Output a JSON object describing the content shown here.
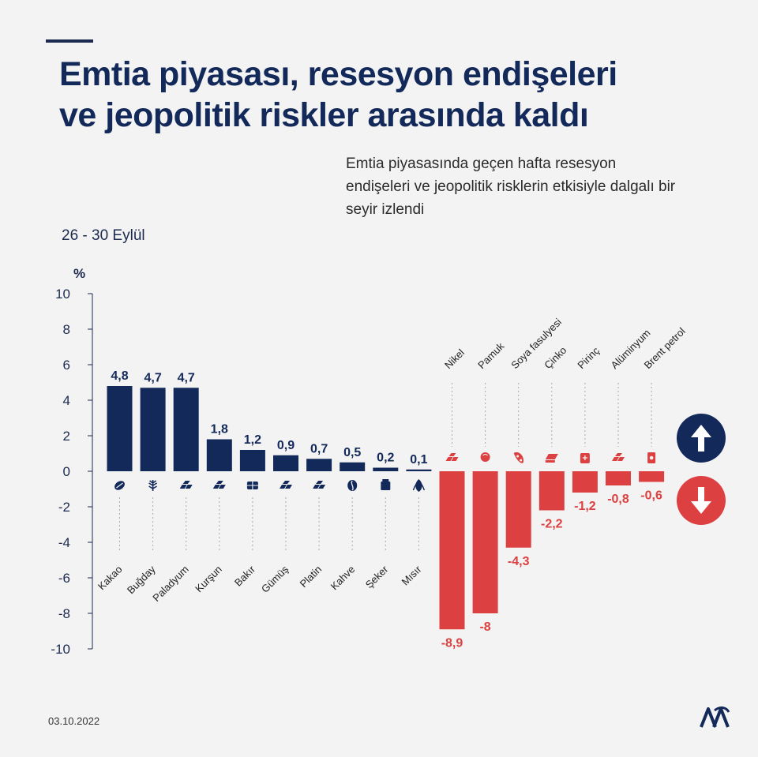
{
  "header": {
    "title": "Emtia piyasası, resesyon endişeleri ve jeopolitik riskler arasında kaldı",
    "subtitle": "Emtia piyasasında geçen hafta resesyon endişeleri ve jeopolitik risklerin etkisiyle dalgalı bir seyir izlendi",
    "date_range": "26 - 30 Eylül"
  },
  "footer": {
    "date": "03.10.2022",
    "logo_text": "AA"
  },
  "colors": {
    "positive": "#13295a",
    "negative": "#dc4040",
    "accent": "#13295a"
  },
  "badges": {
    "up_icon": "arrow-up-icon",
    "down_icon": "arrow-down-icon"
  },
  "chart_data": {
    "type": "bar",
    "ylabel": "%",
    "ylim": [
      -10,
      10
    ],
    "yticks": [
      10,
      8,
      6,
      4,
      2,
      0,
      -2,
      -4,
      -6,
      -8,
      -10
    ],
    "categories": [
      "Kakao",
      "Buğday",
      "Paladyum",
      "Kurşun",
      "Bakır",
      "Gümüş",
      "Platin",
      "Kahve",
      "Şeker",
      "Mısır",
      "Nikel",
      "Pamuk",
      "Soya fasulyesi",
      "Çinko",
      "Pirinç",
      "Alüminyum",
      "Brent petrol"
    ],
    "values": [
      4.8,
      4.7,
      4.7,
      1.8,
      1.2,
      0.9,
      0.7,
      0.5,
      0.2,
      0.1,
      -8.9,
      -8,
      -4.3,
      -2.2,
      -1.2,
      -0.8,
      -0.6
    ],
    "labels": [
      "4,8",
      "4,7",
      "4,7",
      "1,8",
      "1,2",
      "0,9",
      "0,7",
      "0,5",
      "0,2",
      "0,1",
      "-8,9",
      "-8",
      "-4,3",
      "-2,2",
      "-1,2",
      "-0,8",
      "-0,6"
    ],
    "icons": [
      "cocoa-icon",
      "wheat-icon",
      "metal-bars-icon",
      "metal-bars-icon",
      "copper-icon",
      "metal-bars-icon",
      "metal-bars-icon",
      "coffee-icon",
      "sugar-icon",
      "corn-icon",
      "metal-bars-icon",
      "cotton-icon",
      "soybean-icon",
      "zinc-icon",
      "rice-icon",
      "metal-bars-icon",
      "oil-barrel-icon"
    ]
  }
}
